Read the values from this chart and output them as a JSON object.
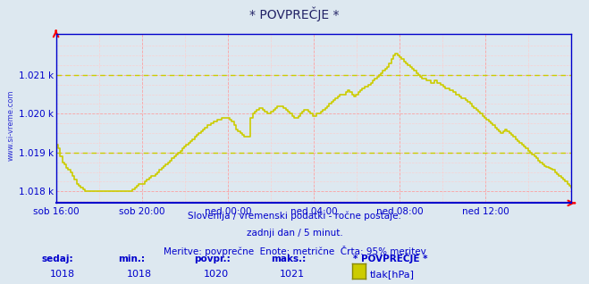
{
  "title": "* POVPREČJE *",
  "bg_color": "#dde8f0",
  "plot_bg_color": "#dde8f0",
  "line_color": "#cccc00",
  "dashed_line_color": "#cccc00",
  "grid_color_major": "#ff9999",
  "grid_color_minor": "#ffcccc",
  "axis_color": "#0000cc",
  "text_color": "#0000cc",
  "watermark": "www.si-vreme.com",
  "subtitle1": "Slovenija / vremenski podatki - ročne postaje.",
  "subtitle2": "zadnji dan / 5 minut.",
  "subtitle3": "Meritve: povprečne  Enote: metrične  Črta: 95% meritev",
  "legend_title": "* POVPREČJE *",
  "legend_label": "tlak[hPa]",
  "stats_sedaj": 1018,
  "stats_min": 1018,
  "stats_povpr": 1020,
  "stats_maks": 1021,
  "xlim_start": 0,
  "xlim_end": 288,
  "ylim_bottom": 1017.7,
  "ylim_top": 1022.05,
  "yticks": [
    1018,
    1019,
    1020,
    1021
  ],
  "xtick_positions": [
    0,
    48,
    96,
    144,
    192,
    240,
    288
  ],
  "xtick_labels": [
    "sob 16:00",
    "sob 20:00",
    "ned 00:00",
    "ned 04:00",
    "ned 08:00",
    "ned 12:00",
    ""
  ],
  "dashed_y1": 1021.0,
  "dashed_y2": 1019.0,
  "data_y": [
    1019.2,
    1019.1,
    1018.9,
    1018.75,
    1018.7,
    1018.6,
    1018.55,
    1018.5,
    1018.4,
    1018.3,
    1018.2,
    1018.15,
    1018.1,
    1018.05,
    1018.0,
    1018.0,
    1018.0,
    1018.0,
    1018.0,
    1018.0,
    1018.0,
    1018.0,
    1018.0,
    1018.0,
    1018.0,
    1018.0,
    1018.0,
    1018.0,
    1018.0,
    1018.0,
    1018.0,
    1018.0,
    1018.0,
    1018.0,
    1018.0,
    1018.0,
    1018.0,
    1018.05,
    1018.1,
    1018.15,
    1018.2,
    1018.2,
    1018.2,
    1018.25,
    1018.3,
    1018.35,
    1018.4,
    1018.4,
    1018.45,
    1018.5,
    1018.55,
    1018.6,
    1018.65,
    1018.7,
    1018.75,
    1018.8,
    1018.85,
    1018.9,
    1018.95,
    1019.0,
    1019.05,
    1019.1,
    1019.15,
    1019.2,
    1019.25,
    1019.3,
    1019.35,
    1019.4,
    1019.45,
    1019.5,
    1019.55,
    1019.6,
    1019.65,
    1019.7,
    1019.7,
    1019.75,
    1019.8,
    1019.8,
    1019.85,
    1019.85,
    1019.9,
    1019.9,
    1019.9,
    1019.9,
    1019.85,
    1019.8,
    1019.7,
    1019.6,
    1019.55,
    1019.5,
    1019.45,
    1019.4,
    1019.4,
    1019.4,
    1019.9,
    1020.0,
    1020.05,
    1020.1,
    1020.15,
    1020.15,
    1020.1,
    1020.05,
    1020.0,
    1020.0,
    1020.05,
    1020.1,
    1020.15,
    1020.2,
    1020.2,
    1020.2,
    1020.15,
    1020.1,
    1020.05,
    1020.0,
    1019.95,
    1019.9,
    1019.9,
    1019.95,
    1020.0,
    1020.05,
    1020.1,
    1020.1,
    1020.05,
    1020.0,
    1019.95,
    1019.95,
    1020.0,
    1020.0,
    1020.05,
    1020.1,
    1020.15,
    1020.2,
    1020.25,
    1020.3,
    1020.35,
    1020.4,
    1020.45,
    1020.5,
    1020.5,
    1020.5,
    1020.55,
    1020.6,
    1020.55,
    1020.5,
    1020.45,
    1020.5,
    1020.55,
    1020.6,
    1020.65,
    1020.7,
    1020.7,
    1020.75,
    1020.8,
    1020.85,
    1020.9,
    1020.95,
    1021.0,
    1021.05,
    1021.1,
    1021.15,
    1021.2,
    1021.3,
    1021.4,
    1021.5,
    1021.55,
    1021.5,
    1021.45,
    1021.4,
    1021.35,
    1021.3,
    1021.25,
    1021.2,
    1021.15,
    1021.1,
    1021.05,
    1021.0,
    1020.95,
    1020.9,
    1020.9,
    1020.85,
    1020.85,
    1020.8,
    1020.8,
    1020.85,
    1020.8,
    1020.8,
    1020.75,
    1020.7,
    1020.65,
    1020.65,
    1020.6,
    1020.6,
    1020.55,
    1020.5,
    1020.5,
    1020.45,
    1020.4,
    1020.4,
    1020.35,
    1020.3,
    1020.25,
    1020.2,
    1020.15,
    1020.1,
    1020.05,
    1020.0,
    1019.95,
    1019.9,
    1019.85,
    1019.8,
    1019.75,
    1019.7,
    1019.65,
    1019.6,
    1019.55,
    1019.5,
    1019.55,
    1019.6,
    1019.55,
    1019.5,
    1019.45,
    1019.4,
    1019.35,
    1019.3,
    1019.25,
    1019.2,
    1019.15,
    1019.1,
    1019.05,
    1019.0,
    1018.95,
    1018.9,
    1018.85,
    1018.8,
    1018.75,
    1018.7,
    1018.65,
    1018.62,
    1018.6,
    1018.58,
    1018.55,
    1018.5,
    1018.45,
    1018.4,
    1018.35,
    1018.3,
    1018.25,
    1018.2,
    1018.15,
    1018.1
  ]
}
